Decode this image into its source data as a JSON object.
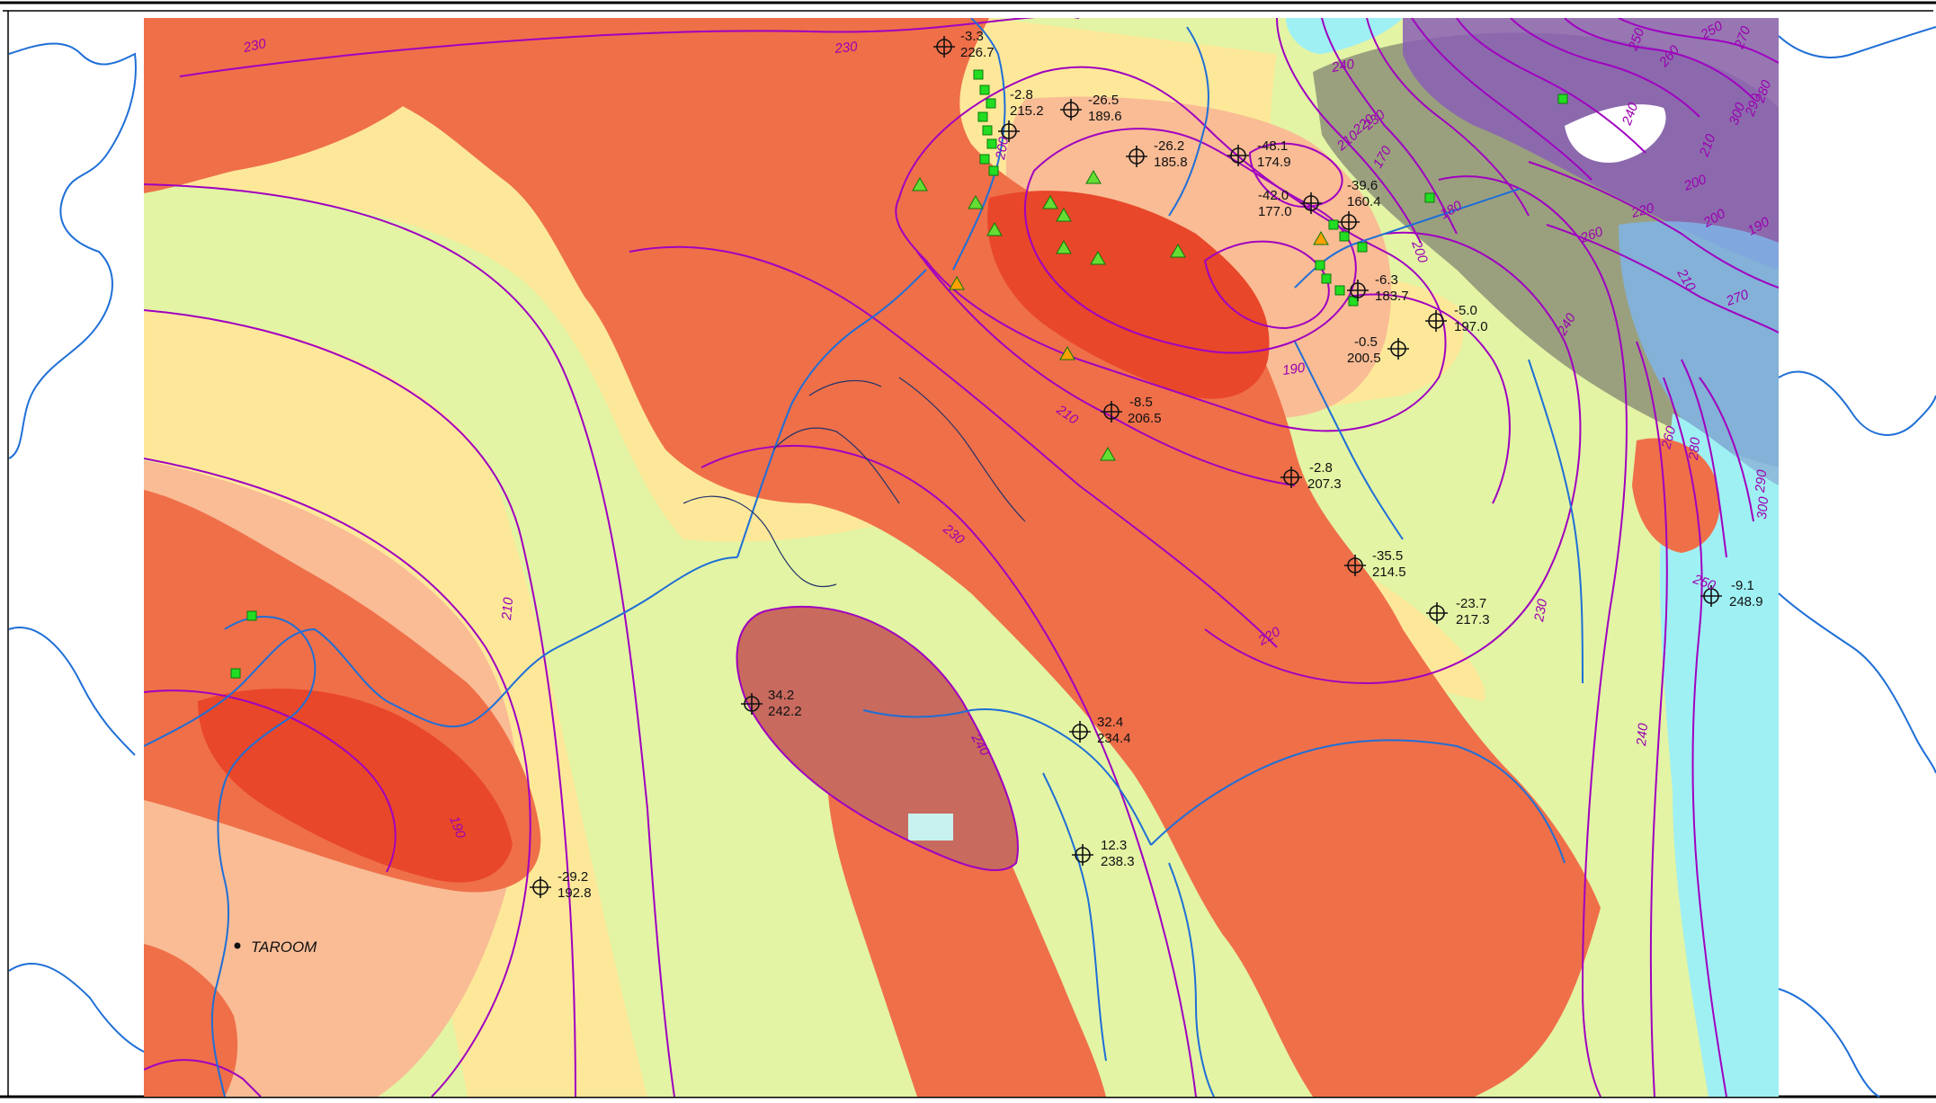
{
  "map": {
    "colors": {
      "background": "#ffffff",
      "frame": "#000000",
      "zone_lightyellow": "#e3f4a4",
      "zone_yellow": "#fde89a",
      "zone_peach": "#f9bc95",
      "zone_red": "#ef6f49",
      "zone_darkred": "#e8472a",
      "zone_brownred": "#c86a5e",
      "zone_grey": "#9aa07e",
      "zone_purple": "#8a5fb5",
      "zone_blue": "#7fb4e6",
      "zone_cyan": "#9ff0f3",
      "contour": "#a000c0",
      "river": "#1f6fd6",
      "river_dark": "#22336a",
      "square_marker": "#22dd22",
      "triangle_green": "#66dd33",
      "triangle_orange": "#ffa000"
    },
    "town": {
      "name": "TAROOM",
      "symbol": "dot-icon"
    },
    "bores": [
      {
        "id": "b1",
        "change": "-3.3",
        "level": "226.7"
      },
      {
        "id": "b2",
        "change": "-2.8",
        "level": "215.2"
      },
      {
        "id": "b3",
        "change": "-26.5",
        "level": "189.6"
      },
      {
        "id": "b4",
        "change": "-26.2",
        "level": "185.8"
      },
      {
        "id": "b5",
        "change": "-48.1",
        "level": "174.9"
      },
      {
        "id": "b6",
        "change": "-42.0",
        "level": "177.0"
      },
      {
        "id": "b7",
        "change": "-39.6",
        "level": "160.4"
      },
      {
        "id": "b8",
        "change": "-6.3",
        "level": "183.7"
      },
      {
        "id": "b9",
        "change": "-5.0",
        "level": "197.0"
      },
      {
        "id": "b10",
        "change": "-0.5",
        "level": "200.5"
      },
      {
        "id": "b11",
        "change": "-8.5",
        "level": "206.5"
      },
      {
        "id": "b12",
        "change": "-2.8",
        "level": "207.3"
      },
      {
        "id": "b13",
        "change": "-35.5",
        "level": "214.5"
      },
      {
        "id": "b14",
        "change": "-23.7",
        "level": "217.3"
      },
      {
        "id": "b15",
        "change": "-9.1",
        "level": "248.9"
      },
      {
        "id": "b16",
        "change": "34.2",
        "level": "242.2"
      },
      {
        "id": "b17",
        "change": "32.4",
        "level": "234.4"
      },
      {
        "id": "b18",
        "change": "12.3",
        "level": "238.3"
      },
      {
        "id": "b19",
        "change": "-29.2",
        "level": "192.8"
      }
    ],
    "contour_labels": [
      {
        "id": "c1",
        "text": "230"
      },
      {
        "id": "c2",
        "text": "230"
      },
      {
        "id": "c3",
        "text": "240"
      },
      {
        "id": "c4",
        "text": "230"
      },
      {
        "id": "c5",
        "text": "220"
      },
      {
        "id": "c6",
        "text": "210"
      },
      {
        "id": "c7",
        "text": "200"
      },
      {
        "id": "c8",
        "text": "170"
      },
      {
        "id": "c9",
        "text": "180"
      },
      {
        "id": "c10",
        "text": "200"
      },
      {
        "id": "c11",
        "text": "190"
      },
      {
        "id": "c12",
        "text": "210"
      },
      {
        "id": "c13",
        "text": "230"
      },
      {
        "id": "c14",
        "text": "220"
      },
      {
        "id": "c15",
        "text": "230"
      },
      {
        "id": "c16",
        "text": "240"
      },
      {
        "id": "c17",
        "text": "250"
      },
      {
        "id": "c18",
        "text": "260"
      },
      {
        "id": "c19",
        "text": "270"
      },
      {
        "id": "c20",
        "text": "280"
      },
      {
        "id": "c21",
        "text": "290"
      },
      {
        "id": "c22",
        "text": "300"
      },
      {
        "id": "c23",
        "text": "250"
      },
      {
        "id": "c24",
        "text": "240"
      },
      {
        "id": "c25",
        "text": "260"
      },
      {
        "id": "c26",
        "text": "270"
      },
      {
        "id": "c27",
        "text": "210"
      },
      {
        "id": "c28",
        "text": "200"
      },
      {
        "id": "c29",
        "text": "190"
      },
      {
        "id": "c30",
        "text": "220"
      },
      {
        "id": "c31",
        "text": "240"
      },
      {
        "id": "c32",
        "text": "210"
      },
      {
        "id": "c33",
        "text": "200"
      },
      {
        "id": "c34",
        "text": "250"
      },
      {
        "id": "c35",
        "text": "260"
      },
      {
        "id": "c36",
        "text": "280"
      },
      {
        "id": "c37",
        "text": "290"
      },
      {
        "id": "c38",
        "text": "300"
      },
      {
        "id": "c39",
        "text": "210"
      },
      {
        "id": "c40",
        "text": "240"
      },
      {
        "id": "c41",
        "text": "190"
      }
    ]
  }
}
